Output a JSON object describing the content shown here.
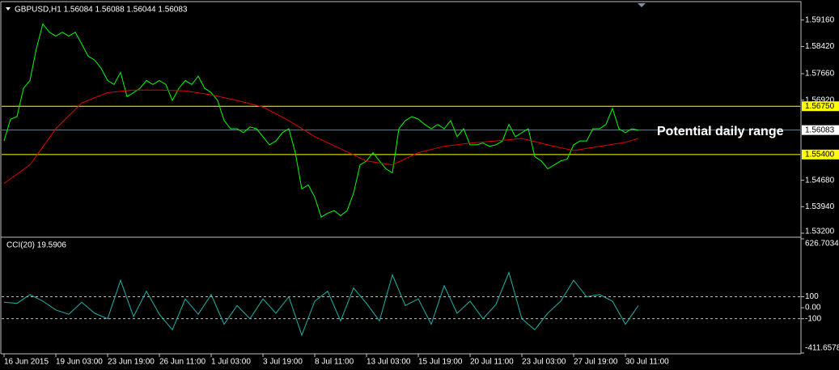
{
  "chart_data": [
    {
      "type": "line",
      "title": "GBPUSD,H1  1.56084 1.56088 1.56044 1.56083",
      "xlim": [
        0,
        123
      ],
      "ylim": [
        1.5311,
        1.5963
      ],
      "yticks": [
        {
          "value": 1.5916,
          "label": "1.59160"
        },
        {
          "value": 1.5842,
          "label": "1.58420"
        },
        {
          "value": 1.5766,
          "label": "1.57660"
        },
        {
          "value": 1.5692,
          "label": "1.56920"
        },
        {
          "value": 1.5468,
          "label": "1.54680"
        },
        {
          "value": 1.5394,
          "label": "1.53940"
        },
        {
          "value": 1.532,
          "label": "1.53200"
        }
      ],
      "levels": [
        {
          "value": 1.5675,
          "label": "1.56750"
        },
        {
          "value": 1.554,
          "label": "1.55400"
        }
      ],
      "level_color": "#ffff00",
      "level_style": "solid",
      "current": {
        "value": 1.56083,
        "label": "1.56083"
      },
      "annotation": "Potential daily range",
      "series": [
        {
          "color": "#00ff00",
          "values": [
            1.5578,
            1.5639,
            1.5646,
            1.5725,
            1.5747,
            1.5837,
            1.5905,
            1.5882,
            1.5871,
            1.5882,
            1.5871,
            1.5882,
            1.5849,
            1.5815,
            1.5804,
            1.5781,
            1.5747,
            1.5736,
            1.577,
            1.5702,
            1.5713,
            1.5725,
            1.5747,
            1.5736,
            1.5747,
            1.5736,
            1.5691,
            1.5725,
            1.5747,
            1.5736,
            1.5759,
            1.5725,
            1.5713,
            1.5691,
            1.5635,
            1.5612,
            1.5612,
            1.5601,
            1.5617,
            1.5612,
            1.559,
            1.5567,
            1.5578,
            1.5601,
            1.5612,
            1.5545,
            1.5444,
            1.5455,
            1.5421,
            1.5365,
            1.5376,
            1.5383,
            1.5369,
            1.5383,
            1.5432,
            1.5511,
            1.5522,
            1.5545,
            1.5522,
            1.55,
            1.5489,
            1.5612,
            1.5635,
            1.5646,
            1.5639,
            1.5624,
            1.5612,
            1.5624,
            1.5612,
            1.5635,
            1.559,
            1.5612,
            1.5567,
            1.5567,
            1.5572,
            1.5563,
            1.5567,
            1.5578,
            1.5624,
            1.559,
            1.5601,
            1.5612,
            1.5534,
            1.5522,
            1.55,
            1.5511,
            1.5522,
            1.5527,
            1.5567,
            1.5578,
            1.5578,
            1.5612,
            1.5612,
            1.5624,
            1.5669,
            1.5612,
            1.5601,
            1.5612,
            1.56083
          ]
        },
        {
          "color": "#e00000",
          "x": [
            0,
            4,
            8,
            12,
            16,
            20,
            24,
            28,
            32,
            36,
            40,
            44,
            48,
            52,
            56,
            60,
            64,
            68,
            72,
            76,
            80,
            84,
            88,
            92,
            96,
            98
          ],
          "values": [
            1.5459,
            1.5511,
            1.5612,
            1.5684,
            1.5713,
            1.572,
            1.572,
            1.5718,
            1.5707,
            1.5691,
            1.5673,
            1.5635,
            1.559,
            1.5556,
            1.5522,
            1.5511,
            1.5545,
            1.5563,
            1.5572,
            1.5578,
            1.5585,
            1.5567,
            1.5551,
            1.5563,
            1.5574,
            1.5585
          ]
        }
      ]
    },
    {
      "type": "line",
      "title": "CCI(20) 19.5906",
      "xlim": [
        0,
        123
      ],
      "ylim": [
        -411.6578,
        626.7034
      ],
      "yticks": [
        626.7034,
        100,
        {
          "value": 0,
          "label": "0.00"
        },
        -100,
        -411.6578
      ],
      "levels": [
        100,
        -100
      ],
      "level_color": "#c0c0c0",
      "level_style": "dashed",
      "xticks": [
        {
          "value": 0,
          "label": "16 Jun 2015"
        },
        {
          "value": 8,
          "label": "19 Jun 03:00"
        },
        {
          "value": 16,
          "label": "23 Jun 19:00"
        },
        {
          "value": 24,
          "label": "26 Jun 11:00"
        },
        {
          "value": 32,
          "label": "1 Jul 03:00"
        },
        {
          "value": 40,
          "label": "3 Jul 19:00"
        },
        {
          "value": 48,
          "label": "8 Jul 11:00"
        },
        {
          "value": 56,
          "label": "13 Jul 03:00"
        },
        {
          "value": 64,
          "label": "15 Jul 19:00"
        },
        {
          "value": 72,
          "label": "20 Jul 11:00"
        },
        {
          "value": 80,
          "label": "23 Jul 03:00"
        },
        {
          "value": 88,
          "label": "27 Jul 19:00"
        },
        {
          "value": 96,
          "label": "30 Jul 11:00"
        }
      ],
      "series": [
        {
          "color": "#20b2aa",
          "x": [
            0,
            2,
            4,
            6,
            8,
            10,
            12,
            14,
            16,
            18,
            20,
            22,
            24,
            26,
            28,
            30,
            32,
            34,
            36,
            38,
            40,
            42,
            44,
            46,
            48,
            50,
            52,
            54,
            56,
            58,
            60,
            62,
            64,
            66,
            68,
            70,
            72,
            74,
            76,
            78,
            80,
            82,
            84,
            86,
            88,
            90,
            92,
            94,
            96,
            98
          ],
          "values": [
            50,
            40,
            120,
            60,
            -20,
            -60,
            50,
            -50,
            -100,
            250,
            -80,
            150,
            -60,
            -200,
            80,
            -60,
            120,
            -150,
            20,
            -100,
            80,
            -50,
            100,
            -250,
            60,
            150,
            -120,
            180,
            40,
            -120,
            300,
            20,
            80,
            -150,
            200,
            -50,
            60,
            -100,
            30,
            320,
            -100,
            -200,
            -50,
            60,
            250,
            100,
            120,
            60,
            -150,
            19.5906
          ]
        }
      ]
    }
  ]
}
